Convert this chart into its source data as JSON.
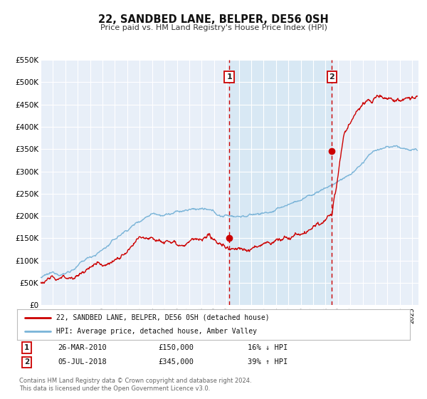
{
  "title": "22, SANDBED LANE, BELPER, DE56 0SH",
  "subtitle": "Price paid vs. HM Land Registry's House Price Index (HPI)",
  "ylim": [
    0,
    550000
  ],
  "yticks": [
    0,
    50000,
    100000,
    150000,
    200000,
    250000,
    300000,
    350000,
    400000,
    450000,
    500000,
    550000
  ],
  "ytick_labels": [
    "£0",
    "£50K",
    "£100K",
    "£150K",
    "£200K",
    "£250K",
    "£300K",
    "£350K",
    "£400K",
    "£450K",
    "£500K",
    "£550K"
  ],
  "xlim_start": 1995.0,
  "xlim_end": 2025.5,
  "background_color": "#ffffff",
  "plot_bg_color": "#e8eff8",
  "grid_color": "#ffffff",
  "sale1_date": 2010.23,
  "sale1_price": 150000,
  "sale2_date": 2018.51,
  "sale2_price": 345000,
  "hpi_color": "#7ab4d8",
  "price_color": "#cc0000",
  "shade_color": "#d8e8f4",
  "legend_label1": "22, SANDBED LANE, BELPER, DE56 0SH (detached house)",
  "legend_label2": "HPI: Average price, detached house, Amber Valley",
  "table_row1": [
    "1",
    "26-MAR-2010",
    "£150,000",
    "16% ↓ HPI"
  ],
  "table_row2": [
    "2",
    "05-JUL-2018",
    "£345,000",
    "39% ↑ HPI"
  ],
  "footer1": "Contains HM Land Registry data © Crown copyright and database right 2024.",
  "footer2": "This data is licensed under the Open Government Licence v3.0."
}
